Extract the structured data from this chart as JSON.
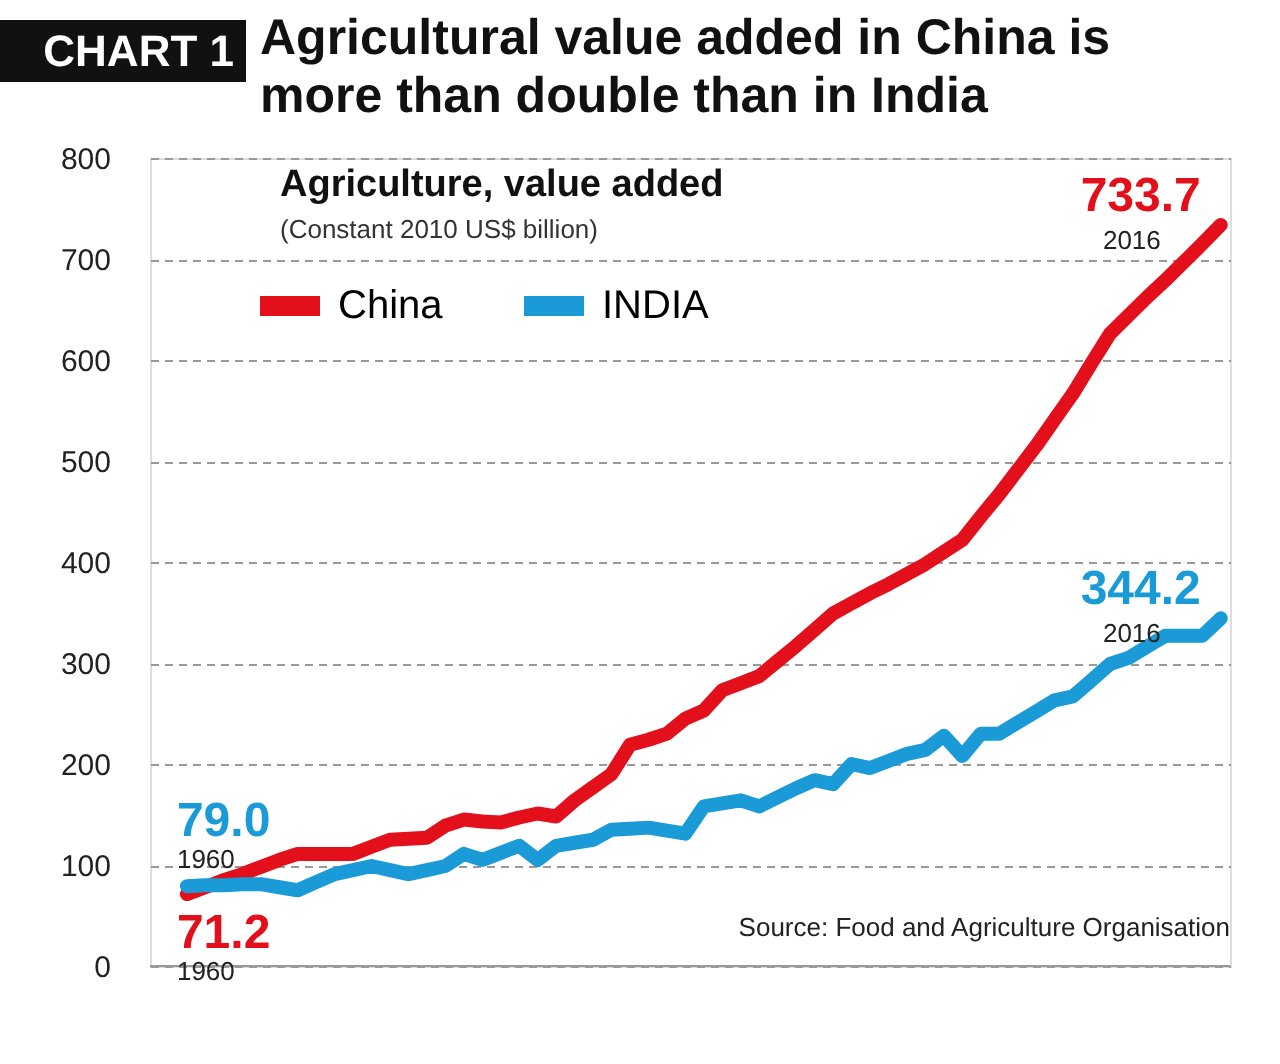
{
  "chart_data": {
    "type": "line",
    "title": "Agricultural value added in China is more than double than in India",
    "subtitle": "Agriculture, value added",
    "ylabel": "(Constant 2010 US$ billion)",
    "categories": [
      null,
      null,
      null,
      null,
      null,
      null,
      null,
      null,
      null,
      null,
      null,
      null,
      null,
      null,
      null,
      null,
      null,
      null,
      null,
      null,
      null,
      null,
      null,
      null,
      null,
      null,
      null,
      null,
      null,
      null,
      null,
      null,
      null,
      null,
      null,
      null,
      null,
      null,
      null,
      null,
      null,
      null,
      null,
      null,
      null,
      null,
      null,
      null,
      null,
      null,
      null,
      null,
      null,
      null,
      null,
      null,
      null
    ],
    "series": [
      {
        "name": "China",
        "color": "#e3101b",
        "values": [
          71.2,
          78,
          85,
          91,
          98,
          105,
          111,
          111,
          111,
          111,
          118,
          125,
          126,
          127,
          139,
          145,
          143,
          142,
          147,
          151,
          148,
          164,
          177,
          190,
          219,
          224,
          230,
          245,
          253,
          273,
          280,
          287,
          302,
          317,
          333,
          349,
          359,
          369,
          378,
          388,
          398,
          410,
          422,
          445,
          467,
          491,
          515,
          541,
          567,
          597,
          626,
          644,
          662,
          679,
          697,
          715,
          733.7
        ]
      },
      {
        "name": "INDIA",
        "color": "#1a9ad6",
        "values": [
          79.0,
          80,
          80,
          81,
          81,
          78,
          75,
          83,
          91,
          95,
          99,
          95,
          91,
          95,
          99,
          111,
          105,
          112,
          119,
          105,
          119,
          122,
          125,
          135,
          136,
          137,
          134,
          131,
          158,
          161,
          164,
          158,
          167,
          176,
          184,
          180,
          200,
          196,
          203,
          210,
          214,
          228,
          208,
          230,
          230,
          241,
          252,
          263,
          267,
          283,
          299,
          305,
          316,
          327,
          327,
          327,
          344.2
        ]
      }
    ],
    "ylim": [
      0,
      800
    ],
    "yticks": [
      0,
      100,
      200,
      300,
      400,
      500,
      600,
      700,
      800
    ],
    "tick_labels": "y",
    "grid": "y",
    "legend": "top left",
    "line_style": "solid",
    "annotations": [
      "CHART 1",
      "733.7",
      "2016",
      "344.2",
      "2016",
      "79.0",
      "1960",
      "71.2",
      "1960",
      "Source: Food and Agriculture Organisation"
    ]
  }
}
